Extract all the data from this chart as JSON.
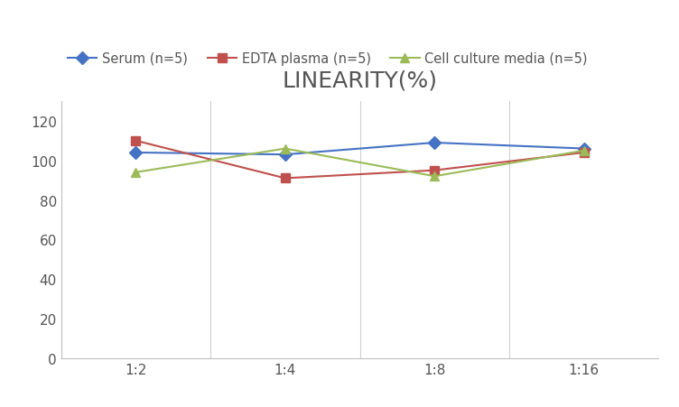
{
  "title": "LINEARITY(%)",
  "x_labels": [
    "1:2",
    "1:4",
    "1:8",
    "1:16"
  ],
  "x_positions": [
    0,
    1,
    2,
    3
  ],
  "series": [
    {
      "label": "Serum (n=5)",
      "values": [
        104,
        103,
        109,
        106
      ],
      "color": "#4472C4",
      "marker": "D",
      "markersize": 7,
      "linewidth": 1.5
    },
    {
      "label": "EDTA plasma (n=5)",
      "values": [
        110,
        91,
        95,
        104
      ],
      "color": "#C0504D",
      "marker": "s",
      "markersize": 7,
      "linewidth": 1.5
    },
    {
      "label": "Cell culture media (n=5)",
      "values": [
        94,
        106,
        92,
        105
      ],
      "color": "#9BBB59",
      "marker": "^",
      "markersize": 7,
      "linewidth": 1.5
    }
  ],
  "ylim": [
    0,
    130
  ],
  "yticks": [
    0,
    20,
    40,
    60,
    80,
    100,
    120
  ],
  "background_color": "#ffffff",
  "grid_color": "#d0d0d0",
  "title_fontsize": 18,
  "title_color": "#555555",
  "legend_fontsize": 10.5,
  "tick_fontsize": 11
}
